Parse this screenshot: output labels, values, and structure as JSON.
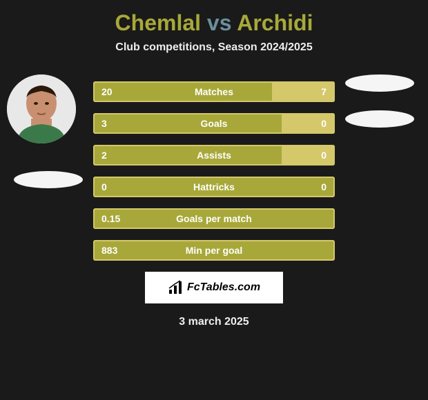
{
  "title": {
    "player1": "Chemlal",
    "vs": "vs",
    "player2": "Archidi",
    "player_color": "#a8a83a",
    "vs_color": "#6b8f9c"
  },
  "subtitle": "Club competitions, Season 2024/2025",
  "colors": {
    "background": "#1a1a1a",
    "bar_primary": "#a8a83a",
    "bar_secondary": "#d4c86a",
    "text": "#ffffff"
  },
  "stats": [
    {
      "label": "Matches",
      "left_value": "20",
      "right_value": "7",
      "left_pct": 74,
      "right_pct": 26
    },
    {
      "label": "Goals",
      "left_value": "3",
      "right_value": "0",
      "left_pct": 78,
      "right_pct": 22
    },
    {
      "label": "Assists",
      "left_value": "2",
      "right_value": "0",
      "left_pct": 78,
      "right_pct": 22
    },
    {
      "label": "Hattricks",
      "left_value": "0",
      "right_value": "0",
      "left_pct": 100,
      "right_pct": 0
    },
    {
      "label": "Goals per match",
      "left_value": "0.15",
      "right_value": "",
      "left_pct": 100,
      "right_pct": 0
    },
    {
      "label": "Min per goal",
      "left_value": "883",
      "right_value": "",
      "left_pct": 100,
      "right_pct": 0
    }
  ],
  "branding": {
    "text": "FcTables.com"
  },
  "date": "3 march 2025"
}
